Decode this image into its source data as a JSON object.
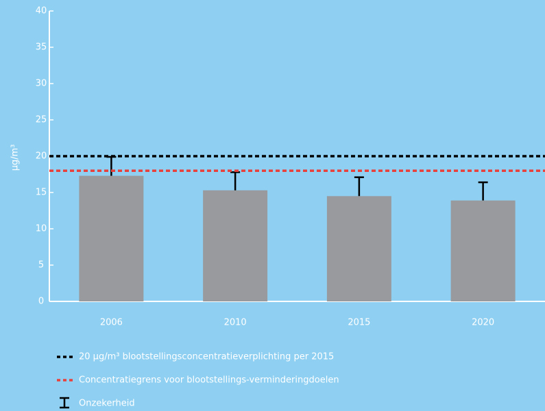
{
  "chart_data": {
    "type": "bar",
    "categories": [
      "2006",
      "2010",
      "2015",
      "2020"
    ],
    "values": [
      17.3,
      15.3,
      14.5,
      13.9
    ],
    "errors": [
      2.6,
      2.5,
      2.6,
      2.5
    ],
    "error_label": "Onzekerheid",
    "color": "#999a9e",
    "error_color": "#000000",
    "ylabel": "µg/m³",
    "ylim": [
      0,
      40
    ],
    "yticks": [
      0,
      5,
      10,
      15,
      20,
      25,
      30,
      35,
      40
    ],
    "reference_lines": [
      {
        "name": "20 µg/m³ blootstellingsconcentratieverplichting per 2015",
        "value": 20,
        "color": "#000000"
      },
      {
        "name": "Concentratiegrens voor blootstellings-verminderingdoelen",
        "value": 18,
        "color": "#e8413c"
      }
    ]
  }
}
